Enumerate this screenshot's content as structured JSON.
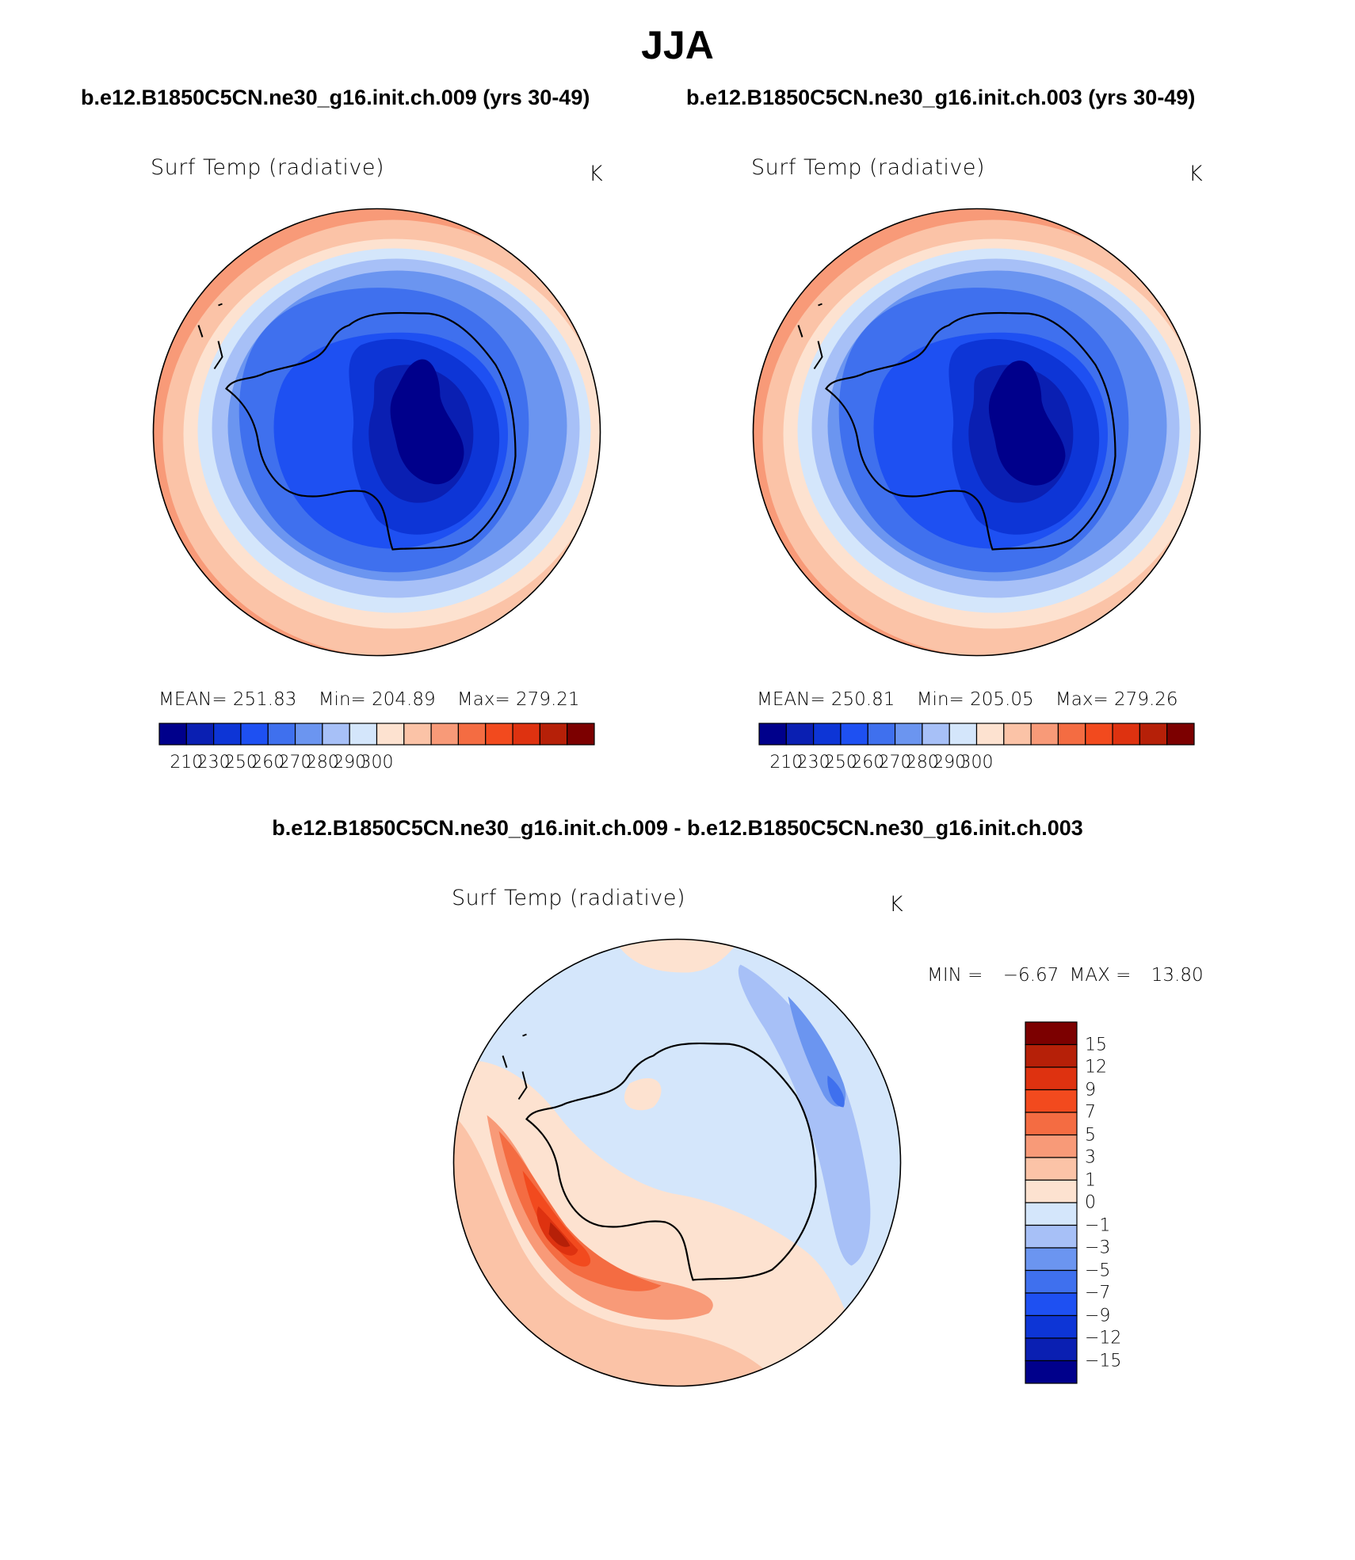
{
  "title": "JJA",
  "subtitle_left": "b.e12.B1850C5CN.ne30_g16.init.ch.009 (yrs 30-49)",
  "subtitle_right": "b.e12.B1850C5CN.ne30_g16.init.ch.003 (yrs 30-49)",
  "subtitle_diff": "b.e12.B1850C5CN.ne30_g16.init.ch.009 - b.e12.B1850C5CN.ne30_g16.init.ch.003",
  "panels": [
    {
      "variable": "Surf Temp (radiative)",
      "units": "K",
      "stats": {
        "mean_label": "MEAN=",
        "mean": "251.83",
        "min_label": "Min=",
        "min": "204.89",
        "max_label": "Max=",
        "max": "279.21"
      }
    },
    {
      "variable": "Surf Temp (radiative)",
      "units": "K",
      "stats": {
        "mean_label": "MEAN=",
        "mean": "250.81",
        "min_label": "Min=",
        "min": "205.05",
        "max_label": "Max=",
        "max": "279.26"
      }
    }
  ],
  "diff_panel": {
    "variable": "Surf Temp (radiative)",
    "units": "K",
    "min_label": "MIN =",
    "min": "−6.67",
    "max_label": "MAX =",
    "max": "13.80"
  },
  "abs_colorbar": {
    "colors": [
      "#00008b",
      "#0a1fb2",
      "#0d35d6",
      "#1e50f2",
      "#3f70ee",
      "#6b95f0",
      "#a7c0f7",
      "#d4e6fb",
      "#fde2d0",
      "#fbc3a7",
      "#f89a78",
      "#f46c42",
      "#f24a1e",
      "#de3210",
      "#b62008",
      "#7c0000"
    ],
    "tick_labels": [
      "210",
      "230",
      "250",
      "260",
      "270",
      "280",
      "290",
      "300"
    ]
  },
  "diff_colorbar": {
    "colors": [
      "#00008b",
      "#0a1fb2",
      "#0d35d6",
      "#1e50f2",
      "#3f70ee",
      "#6b95f0",
      "#a7c0f7",
      "#d4e6fb",
      "#fde2d0",
      "#fbc3a7",
      "#f89a78",
      "#f46c42",
      "#f24a1e",
      "#de3210",
      "#b62008",
      "#7c0000"
    ],
    "tick_labels": [
      "15",
      "12",
      "9",
      "7",
      "5",
      "3",
      "1",
      "0",
      "−1",
      "−3",
      "−5",
      "−7",
      "−9",
      "−12",
      "−15"
    ]
  }
}
